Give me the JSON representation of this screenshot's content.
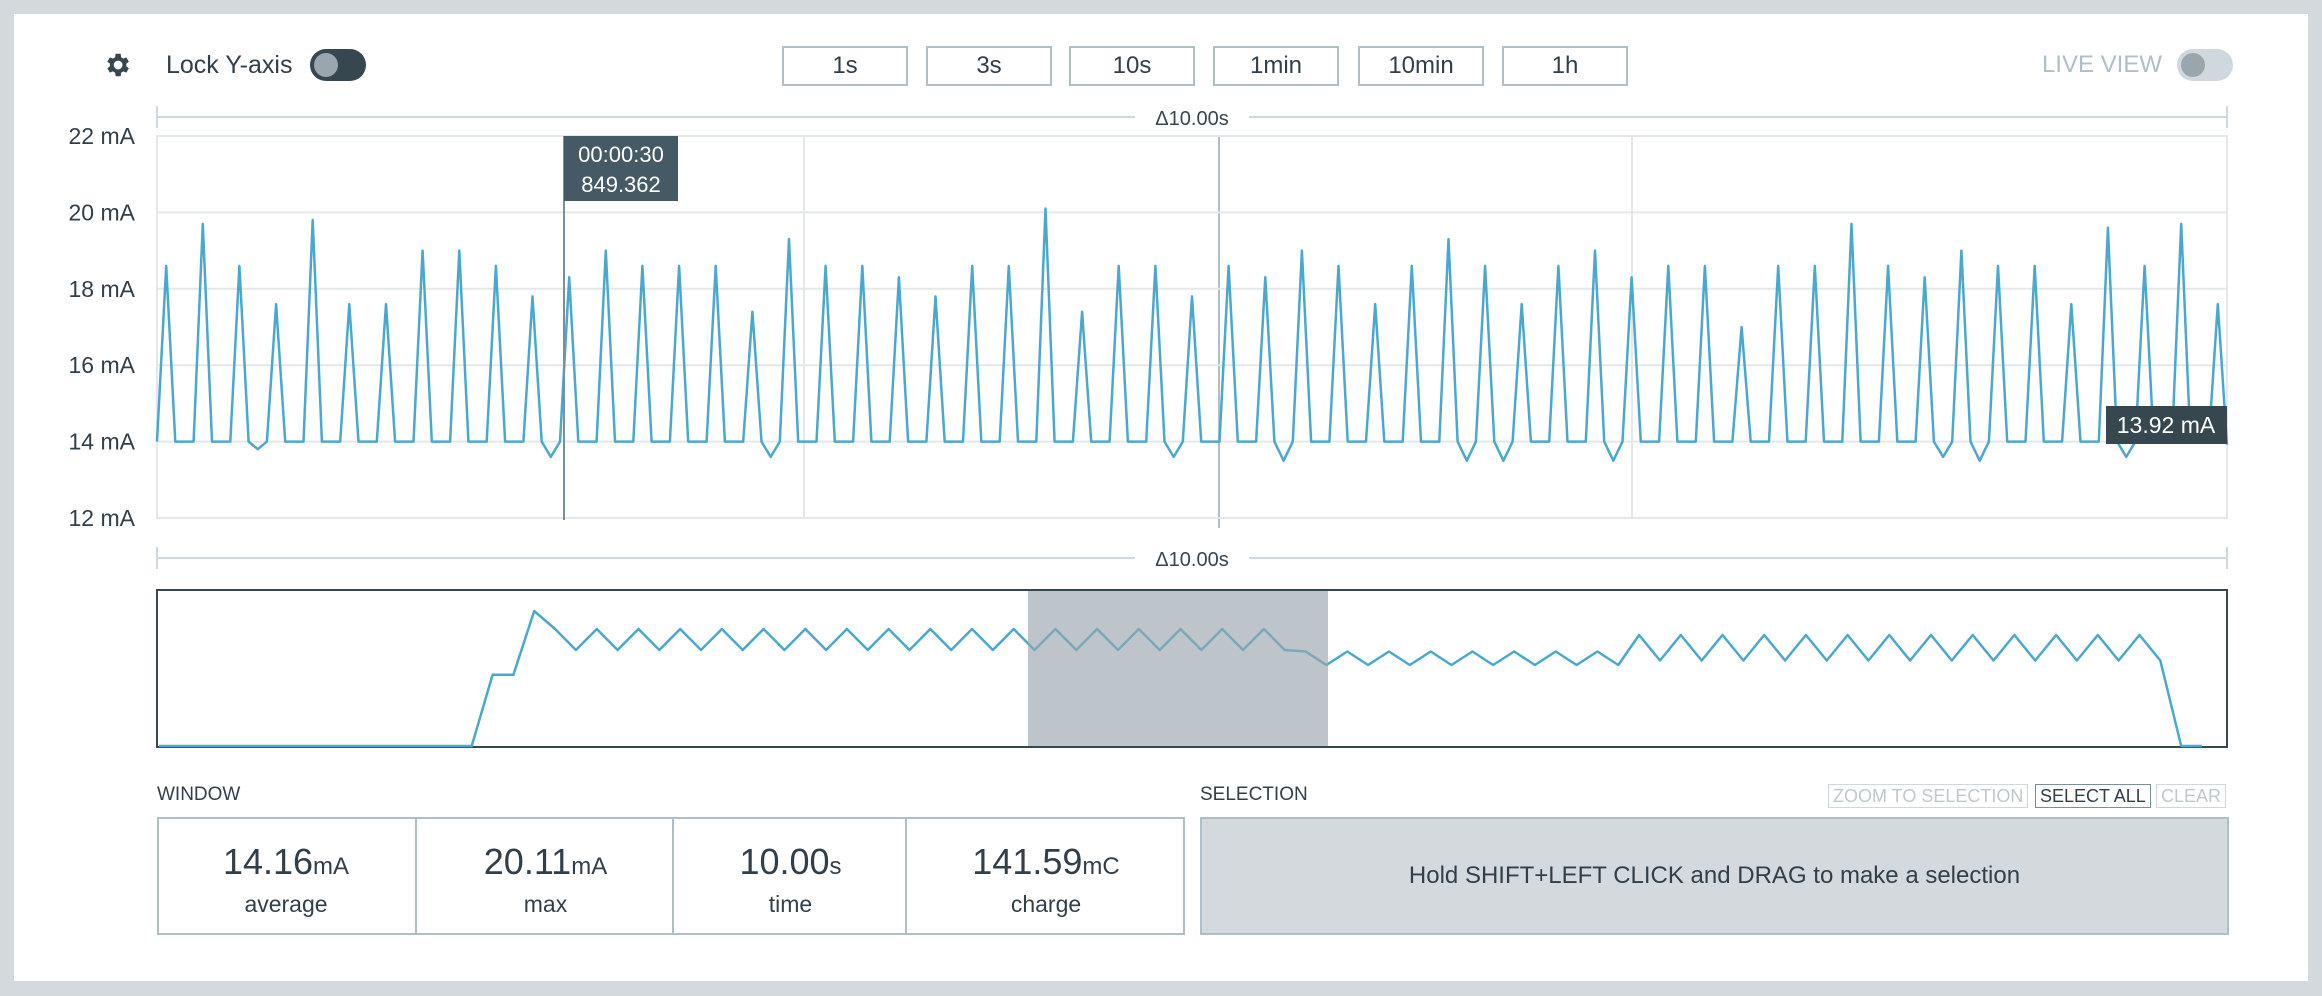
{
  "toolbar": {
    "lock_label": "Lock Y-axis",
    "windows": [
      "1s",
      "3s",
      "10s",
      "1min",
      "10min",
      "1h"
    ],
    "live_label": "LIVE VIEW"
  },
  "chart_data": [
    {
      "type": "line",
      "color": "#4aa8cf",
      "grid": true,
      "ylim": [
        12,
        22
      ],
      "yticks": [
        {
          "value": 12,
          "label": "12 mA"
        },
        {
          "value": 14,
          "label": "14 mA"
        },
        {
          "value": 16,
          "label": "16 mA"
        },
        {
          "value": 18,
          "label": "18 mA"
        },
        {
          "value": 20,
          "label": "20 mA"
        },
        {
          "value": 22,
          "label": "22 mA"
        }
      ],
      "delta_top": "Δ10.00s",
      "delta_bottom": "Δ10.00s",
      "cursor": {
        "time": "00:00:30",
        "value": "849.362"
      },
      "value_label": "13.92 mA",
      "values": [
        14,
        18.6,
        14,
        14,
        14,
        19.7,
        14,
        14,
        14,
        18.6,
        14,
        13.8,
        14,
        17.6,
        14,
        14,
        14,
        19.8,
        14,
        14,
        14,
        17.6,
        14,
        14,
        14,
        17.6,
        14,
        14,
        14,
        19,
        14,
        14,
        14,
        19,
        14,
        14,
        14,
        18.6,
        14,
        14,
        14,
        17.8,
        14,
        13.6,
        14,
        18.3,
        14,
        14,
        14,
        19,
        14,
        14,
        14,
        18.6,
        14,
        14,
        14,
        18.6,
        14,
        14,
        14,
        18.6,
        14,
        14,
        14,
        17.4,
        14,
        13.6,
        14,
        19.3,
        14,
        14,
        14,
        18.6,
        14,
        14,
        14,
        18.6,
        14,
        14,
        14,
        18.3,
        14,
        14,
        14,
        17.8,
        14,
        14,
        14,
        18.6,
        14,
        14,
        14,
        18.6,
        14,
        14,
        14,
        20.1,
        14,
        14,
        14,
        17.4,
        14,
        14,
        14,
        18.6,
        14,
        14,
        14,
        18.6,
        14,
        13.6,
        14,
        17.8,
        14,
        14,
        14,
        18.6,
        14,
        14,
        14,
        18.3,
        14,
        13.5,
        14,
        19,
        14,
        14,
        14,
        18.6,
        14,
        14,
        14,
        17.6,
        14,
        14,
        14,
        18.6,
        14,
        14,
        14,
        19.3,
        14,
        13.5,
        14,
        18.6,
        14,
        13.5,
        14,
        17.6,
        14,
        14,
        14,
        18.6,
        14,
        14,
        14,
        19,
        14,
        13.5,
        14,
        18.3,
        14,
        14,
        14,
        18.6,
        14,
        14,
        14,
        18.6,
        14,
        14,
        14,
        17,
        14,
        14,
        14,
        18.6,
        14,
        14,
        14,
        18.6,
        14,
        14,
        14,
        19.7,
        14,
        14,
        14,
        18.6,
        14,
        14,
        14,
        18.3,
        14,
        13.6,
        14,
        19,
        14,
        13.5,
        14,
        18.6,
        14,
        14,
        14,
        18.6,
        14,
        14,
        14,
        17.6,
        14,
        14,
        14,
        19.6,
        14,
        13.6,
        14,
        18.6,
        14,
        14,
        14,
        19.7,
        14,
        14,
        14,
        17.6,
        13.92
      ]
    },
    {
      "type": "line",
      "color": "#4aa8cf",
      "ylim": [
        0,
        20
      ],
      "values": [
        0,
        0,
        0,
        0,
        0,
        0,
        0,
        0,
        0,
        0,
        0,
        0,
        0,
        0,
        0,
        0,
        9.5,
        9.5,
        18,
        15.6,
        12.8,
        15.6,
        12.8,
        15.6,
        12.8,
        15.6,
        12.8,
        15.6,
        12.8,
        15.6,
        12.8,
        15.6,
        12.8,
        15.6,
        12.8,
        15.6,
        12.8,
        15.6,
        12.8,
        15.6,
        12.8,
        15.6,
        12.8,
        15.6,
        12.8,
        15.6,
        12.8,
        15.6,
        12.8,
        15.6,
        12.8,
        15.6,
        12.8,
        15.6,
        12.8,
        12.6,
        10.8,
        12.6,
        10.8,
        12.6,
        10.8,
        12.6,
        10.8,
        12.6,
        10.8,
        12.6,
        10.8,
        12.6,
        10.8,
        12.6,
        10.8,
        14.8,
        11.4,
        14.8,
        11.4,
        14.8,
        11.4,
        14.8,
        11.4,
        14.8,
        11.4,
        14.8,
        11.4,
        14.8,
        11.4,
        14.8,
        11.4,
        14.8,
        11.4,
        14.8,
        11.4,
        14.8,
        11.4,
        14.8,
        11.4,
        14.8,
        11.4,
        0,
        0
      ]
    }
  ],
  "window": {
    "title": "WINDOW",
    "stats": [
      {
        "value": "14.16",
        "unit": "mA",
        "label": "average"
      },
      {
        "value": "20.11",
        "unit": "mA",
        "label": "max"
      },
      {
        "value": "10.00",
        "unit": "s",
        "label": "time"
      },
      {
        "value": "141.59",
        "unit": "mC",
        "label": "charge"
      }
    ]
  },
  "selection": {
    "title": "SELECTION",
    "buttons": [
      "ZOOM TO SELECTION",
      "SELECT ALL",
      "CLEAR"
    ],
    "hint": "Hold SHIFT+LEFT CLICK and DRAG to make a selection"
  }
}
